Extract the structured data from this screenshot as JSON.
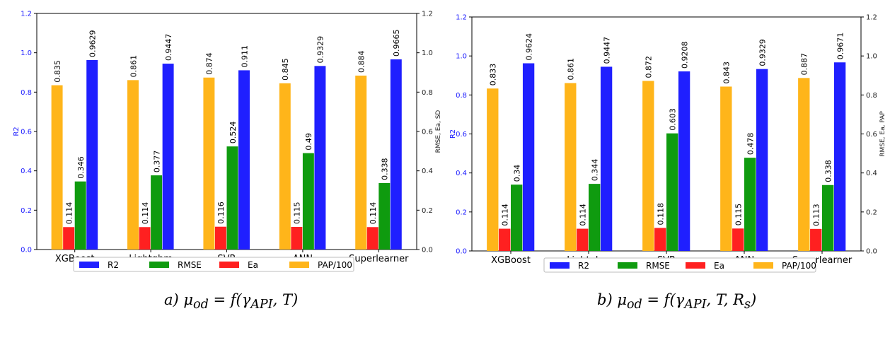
{
  "colors": {
    "R2": "#1f1fff",
    "RMSE": "#0f9b0f",
    "Ea": "#ff2020",
    "PAP/100": "#ffb51a",
    "left_axis_text": "#1a1aff"
  },
  "chart_data": [
    {
      "type": "bar",
      "categories": [
        "XGBoost",
        "Lightgbm",
        "SVR",
        "ANN",
        "Superlearner"
      ],
      "series": [
        {
          "name": "PAP/100",
          "values": [
            0.835,
            0.861,
            0.874,
            0.845,
            0.884
          ],
          "labels": [
            "0.835",
            "0.861",
            "0.874",
            "0.845",
            "0.884"
          ]
        },
        {
          "name": "Ea",
          "values": [
            0.114,
            0.114,
            0.116,
            0.115,
            0.114
          ],
          "labels": [
            "0.114",
            "0.114",
            "0.116",
            "0.115",
            "0.114"
          ]
        },
        {
          "name": "RMSE",
          "values": [
            0.346,
            0.377,
            0.524,
            0.49,
            0.338
          ],
          "labels": [
            "0.346",
            "0.377",
            "0.524",
            "0.49",
            "0.338"
          ]
        },
        {
          "name": "R2",
          "values": [
            0.9629,
            0.9447,
            0.911,
            0.9329,
            0.9665
          ],
          "labels": [
            "0.9629",
            "0.9447",
            "0.911",
            "0.9329",
            "0.9665"
          ]
        }
      ],
      "legend_order": [
        "R2",
        "RMSE",
        "Ea",
        "PAP/100"
      ],
      "legend_position": "bottom",
      "ylabel": "R2",
      "y2label": "RMSE, Ea, SD",
      "ylim": [
        0,
        1.2
      ],
      "y2lim": [
        0,
        1.2
      ],
      "yticks": [
        "0.0",
        "0.2",
        "0.4",
        "0.6",
        "0.8",
        "1.0",
        "1.2"
      ],
      "grid": false,
      "caption": "a) μ_od = f(γ_API, T)"
    },
    {
      "type": "bar",
      "categories": [
        "XGBoost",
        "Lightgbm",
        "SVR",
        "ANN",
        "Superlearner"
      ],
      "series": [
        {
          "name": "PAP/100",
          "values": [
            0.833,
            0.861,
            0.872,
            0.843,
            0.887
          ],
          "labels": [
            "0.833",
            "0.861",
            "0.872",
            "0.843",
            "0.887"
          ]
        },
        {
          "name": "Ea",
          "values": [
            0.114,
            0.114,
            0.118,
            0.115,
            0.113
          ],
          "labels": [
            "0.114",
            "0.114",
            "0.118",
            "0.115",
            "0.113"
          ]
        },
        {
          "name": "RMSE",
          "values": [
            0.34,
            0.344,
            0.603,
            0.478,
            0.338
          ],
          "labels": [
            "0.34",
            "0.344",
            "0.603",
            "0.478",
            "0.338"
          ]
        },
        {
          "name": "R2",
          "values": [
            0.9624,
            0.9447,
            0.9208,
            0.9329,
            0.9671
          ],
          "labels": [
            "0.9624",
            "0.9447",
            "0.9208",
            "0.9329",
            "0.9671"
          ]
        }
      ],
      "legend_order": [
        "R2",
        "RMSE",
        "Ea",
        "PAP/100"
      ],
      "legend_position": "bottom",
      "ylabel": "R2",
      "y2label": "RMSE, Ea, PAP",
      "ylim": [
        0,
        1.2
      ],
      "y2lim": [
        0,
        1.2
      ],
      "yticks": [
        "0.0",
        "0.2",
        "0.4",
        "0.6",
        "0.8",
        "1.0",
        "1.2"
      ],
      "grid": false,
      "caption": "b) μ_od = f(γ_API, T, R_s)"
    }
  ]
}
